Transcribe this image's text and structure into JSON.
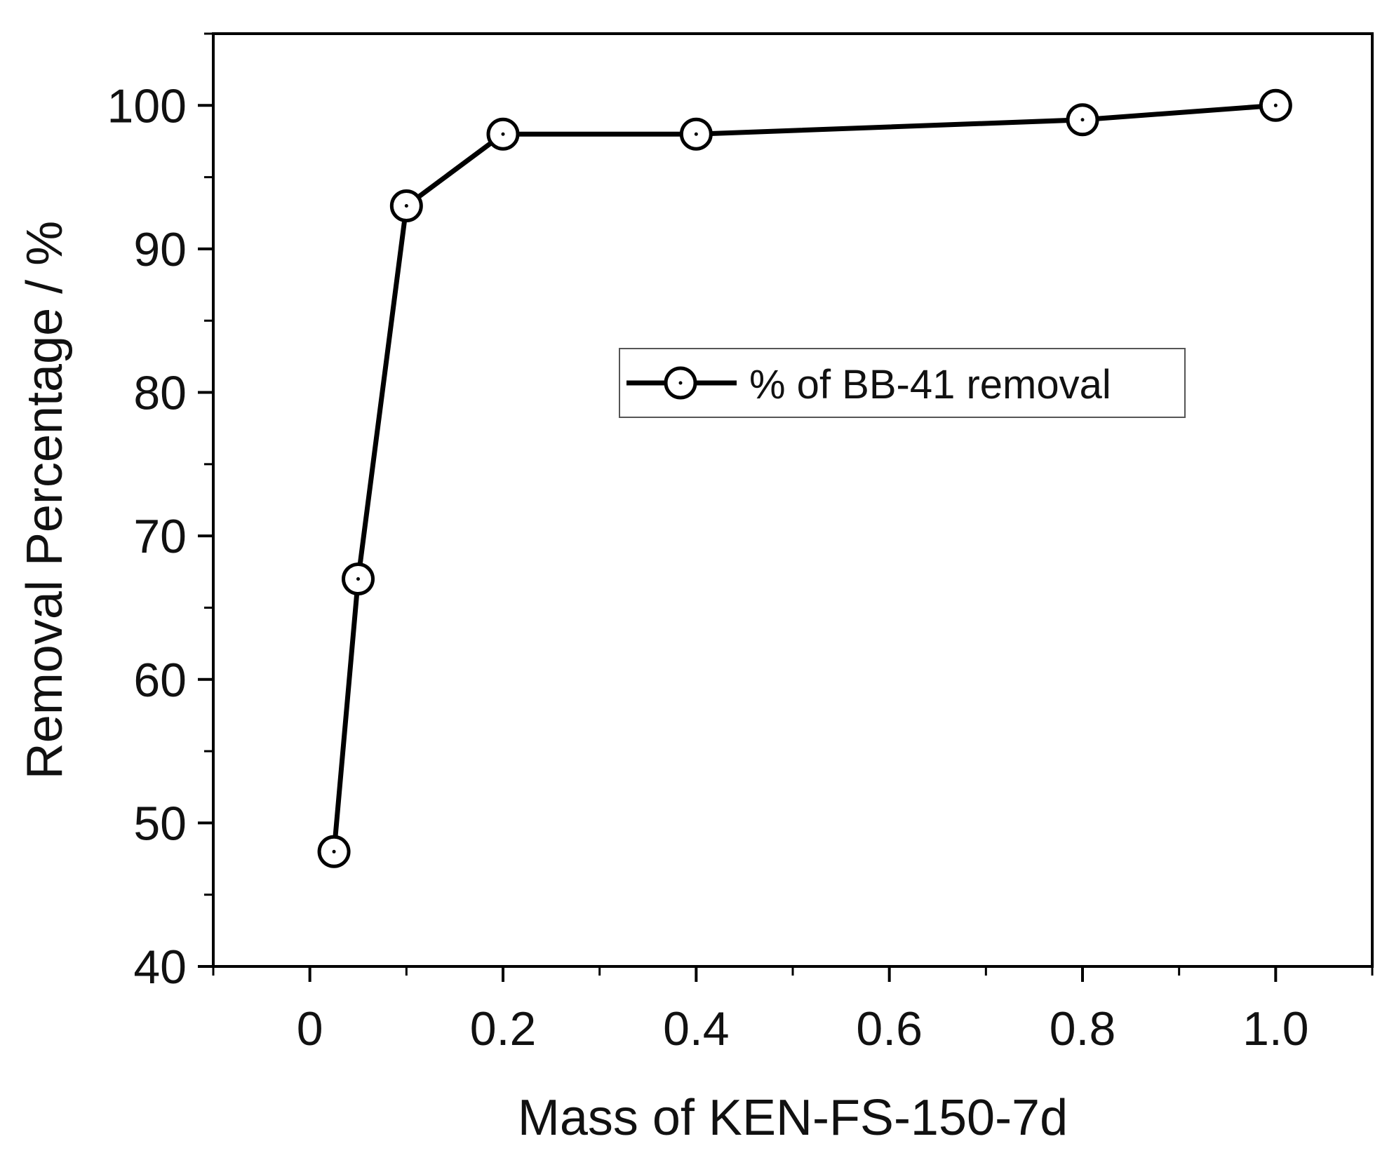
{
  "chart_data": {
    "type": "line",
    "title": "",
    "xlabel": "Mass of KEN-FS-150-7d",
    "ylabel": "Removal Percentage / %",
    "xlim": [
      -0.1,
      1.1
    ],
    "ylim": [
      40,
      105
    ],
    "x_ticks": [
      0,
      0.2,
      0.4,
      0.6,
      0.8,
      1.0
    ],
    "x_tick_labels": [
      "0",
      "0.2",
      "0.4",
      "0.6",
      "0.8",
      "1.0"
    ],
    "y_ticks": [
      40,
      50,
      60,
      70,
      80,
      90,
      100
    ],
    "y_tick_labels": [
      "40",
      "50",
      "60",
      "70",
      "80",
      "90",
      "100"
    ],
    "grid": false,
    "legend": {
      "placement": "center-right"
    },
    "series": [
      {
        "name": "% of BB-41 removal",
        "color": "#000000",
        "marker": "circle-dot",
        "x": [
          0.025,
          0.05,
          0.1,
          0.2,
          0.4,
          0.8,
          1.0
        ],
        "y": [
          48,
          67,
          93,
          98,
          98,
          99,
          100
        ]
      }
    ]
  }
}
